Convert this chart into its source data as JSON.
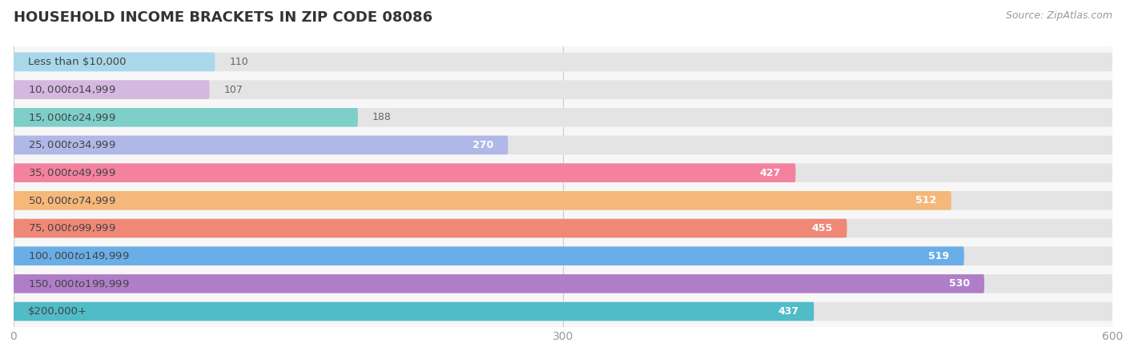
{
  "title": "HOUSEHOLD INCOME BRACKETS IN ZIP CODE 08086",
  "source": "Source: ZipAtlas.com",
  "categories": [
    "Less than $10,000",
    "$10,000 to $14,999",
    "$15,000 to $24,999",
    "$25,000 to $34,999",
    "$35,000 to $49,999",
    "$50,000 to $74,999",
    "$75,000 to $99,999",
    "$100,000 to $149,999",
    "$150,000 to $199,999",
    "$200,000+"
  ],
  "values": [
    110,
    107,
    188,
    270,
    427,
    512,
    455,
    519,
    530,
    437
  ],
  "bar_colors": [
    "#a8d8ea",
    "#d4b8e0",
    "#7ececa",
    "#b0b8e8",
    "#f4829e",
    "#f5b87a",
    "#f08878",
    "#6aaee8",
    "#b07ec8",
    "#50bcc8"
  ],
  "xlim": [
    0,
    600
  ],
  "xticks": [
    0,
    300,
    600
  ],
  "title_fontsize": 13,
  "label_fontsize": 9.5,
  "value_fontsize": 9,
  "source_fontsize": 9,
  "value_threshold": 200
}
